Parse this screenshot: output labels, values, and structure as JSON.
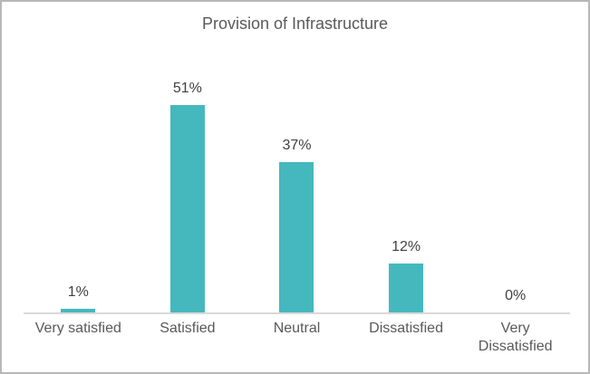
{
  "chart": {
    "title": "Provision of Infrastructure"
  },
  "chart_data": {
    "type": "bar",
    "title": "Provision of Infrastructure",
    "categories": [
      "Very satisfied",
      "Satisfied",
      "Neutral",
      "Dissatisfied",
      "Very Dissatisfied"
    ],
    "values": [
      1,
      51,
      37,
      12,
      0
    ],
    "data_labels": [
      "1%",
      "51%",
      "37%",
      "12%",
      "0%"
    ],
    "unit": "%",
    "xlabel": "",
    "ylabel": "",
    "ylim": [
      0,
      55
    ],
    "gridlines": false,
    "y_axis_visible": false,
    "legend_position": "none",
    "bar_color": "#45b8be",
    "data_label_color": "#404040",
    "category_label_color": "#595959",
    "title_color": "#595959",
    "axis_line_color": "#d9d9d9",
    "border_color": "#b7b7b7",
    "background_color": "#ffffff"
  }
}
